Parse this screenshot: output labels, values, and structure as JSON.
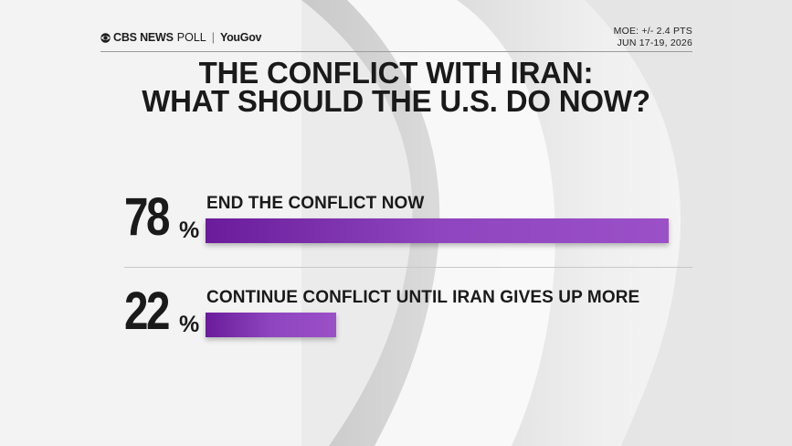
{
  "brand": {
    "network": "CBS NEWS",
    "poll": "POLL",
    "separator": "|",
    "partner": "YouGov"
  },
  "meta": {
    "moe": "MOE: +/- 2.4 PTS",
    "dates": "JUN 17-19, 2026"
  },
  "title": {
    "line1": "THE CONFLICT WITH IRAN:",
    "line2": "WHAT SHOULD THE U.S. DO NOW?"
  },
  "colors": {
    "bar_start": "#6a1c9a",
    "bar_end": "#9b50c7",
    "text": "#1a1a1a"
  },
  "chart_data": {
    "type": "bar",
    "orientation": "horizontal",
    "title": "THE CONFLICT WITH IRAN: WHAT SHOULD THE U.S. DO NOW?",
    "categories": [
      "END THE CONFLICT NOW",
      "CONTINUE CONFLICT UNTIL IRAN GIVES UP MORE"
    ],
    "values": [
      78,
      22
    ],
    "value_labels": [
      "78",
      "22"
    ],
    "unit": "%",
    "xlim": [
      0,
      78
    ],
    "grid": false,
    "legend": "none"
  }
}
